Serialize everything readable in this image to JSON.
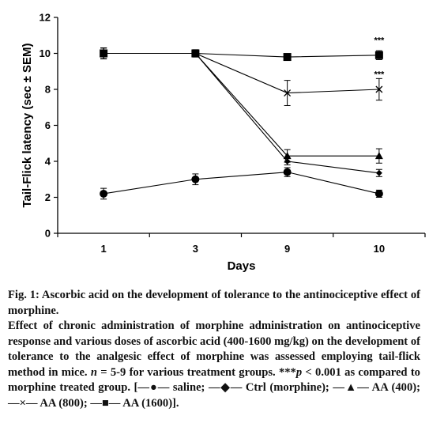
{
  "chart_data": {
    "type": "line",
    "categories": [
      "1",
      "3",
      "9",
      "10"
    ],
    "ylabel": "Tail-Flick latency (sec ± SEM)",
    "xlabel": "Days",
    "ylim": [
      0,
      12
    ],
    "yticks": [
      "0",
      "2",
      "4",
      "6",
      "8",
      "10",
      "12"
    ],
    "grid": false,
    "series": [
      {
        "marker": "circle",
        "values": [
          2.2,
          3.0,
          3.4,
          2.2
        ],
        "errors": [
          0.3,
          0.3,
          0.25,
          0.2
        ]
      },
      {
        "marker": "diamond",
        "values": [
          10.0,
          10.0,
          4.0,
          3.35
        ],
        "errors": [
          0.3,
          0.2,
          0.2,
          0.2
        ]
      },
      {
        "marker": "triangle",
        "values": [
          10.0,
          10.0,
          4.3,
          4.3
        ],
        "errors": [
          0.3,
          0.2,
          0.35,
          0.4
        ]
      },
      {
        "marker": "x",
        "values": [
          10.0,
          10.0,
          7.8,
          8.0
        ],
        "errors": [
          0.3,
          0.2,
          0.7,
          0.6
        ]
      },
      {
        "marker": "square",
        "values": [
          10.0,
          10.0,
          9.8,
          9.9
        ],
        "errors": [
          0.3,
          0.2,
          0.15,
          0.25
        ]
      }
    ],
    "annotations": [
      {
        "text": "***",
        "category": "10",
        "value": 10.75
      },
      {
        "text": "***",
        "category": "10",
        "value": 8.85
      }
    ]
  },
  "caption": {
    "title": "Fig. 1: Ascorbic acid on the development of tolerance to the antinociceptive effect of morphine.",
    "body_1": "Effect of chronic administration of morphine administration on antinociceptive response and various doses of ascorbic acid (400-1600 mg/kg) on the development of tolerance to the analgesic effect of morphine was assessed employing tail-flick method in mice. ",
    "n_italic": "n",
    "body_2": " = 5-9 for various treatment groups. ***",
    "p_italic": "p",
    "body_3": " < 0.001 as compared to morphine treated group. [—●— saline; —◆— Ctrl (morphine); —▲— AA (400); —×— AA (800); —■— AA (1600)]."
  }
}
